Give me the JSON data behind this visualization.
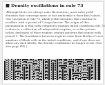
{
  "title": "Density oscillations in rule 73",
  "title_bullet": "■",
  "body_text": "Although there are always some fluctuations, most rules yield densities that converge more or less uniformly to their final values. One exception is rule 73, which yields densities that continue to oscillate with a period of 5 steps forever. The origin of this phenomenon is that with completely random initial conditions rule 73 evolves to a collection of independent regions, as in the picture below, and many of these regions contain patterns that repeat with period 5. The boundaries between regions come from blocks of even numbers of black cells in the initial conditions, and if one does not allow any such blocks, the density oscillations no longer occur. (See also page 695.)",
  "bg_color": "#f0f0f0",
  "border_color": "#cccccc",
  "title_color": "#222222",
  "body_color": "#444444",
  "ca_rows": 20,
  "ca_cols": 120,
  "rule": 73
}
